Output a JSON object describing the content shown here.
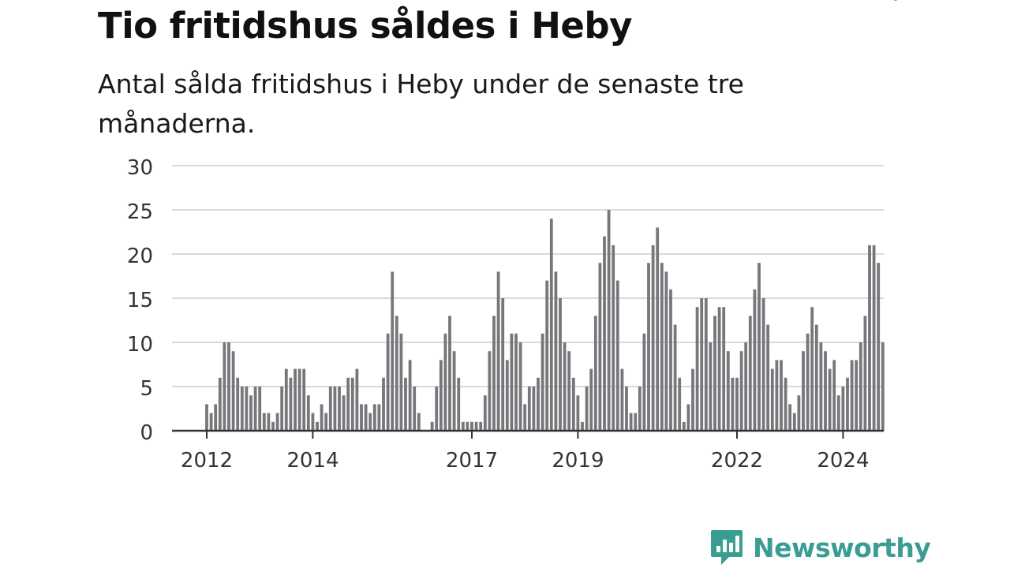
{
  "header": {
    "title": "Tio fritidshus såldes i Heby",
    "subtitle": "Antal sålda fritidshus i Heby under de senaste tre månaderna."
  },
  "brand": {
    "name": "Newsworthy",
    "icon": "newsworthy-logo-icon",
    "color": "#3a9d93"
  },
  "colors": {
    "bar": "#77767b",
    "highlight": "#1aa39a",
    "grid": "#d9d9d9",
    "axis": "#333333"
  },
  "chart_data": {
    "type": "bar",
    "title": "Tio fritidshus såldes i Heby",
    "subtitle": "Antal sålda fritidshus i Heby under de senaste tre månaderna.",
    "xlabel": "",
    "ylabel": "",
    "ylim": [
      0,
      30
    ],
    "yticks": [
      "0",
      "5",
      "10",
      "15",
      "20",
      "25",
      "30"
    ],
    "xticks": [
      {
        "label": "2012",
        "index": 0
      },
      {
        "label": "2014",
        "index": 24
      },
      {
        "label": "2017",
        "index": 60
      },
      {
        "label": "2019",
        "index": 84
      },
      {
        "label": "2022",
        "index": 120
      },
      {
        "label": "2024",
        "index": 144
      }
    ],
    "grid": true,
    "highlight": {
      "index": 154,
      "label": "10"
    },
    "values": [
      3,
      2,
      3,
      6,
      10,
      10,
      9,
      6,
      5,
      5,
      4,
      5,
      5,
      2,
      2,
      1,
      2,
      5,
      7,
      6,
      7,
      7,
      7,
      4,
      2,
      1,
      3,
      2,
      5,
      5,
      5,
      4,
      6,
      6,
      7,
      3,
      3,
      2,
      3,
      3,
      6,
      11,
      18,
      13,
      11,
      6,
      8,
      5,
      2,
      0,
      0,
      1,
      5,
      8,
      11,
      13,
      9,
      6,
      1,
      1,
      1,
      1,
      1,
      4,
      9,
      13,
      18,
      15,
      8,
      11,
      11,
      10,
      3,
      5,
      5,
      6,
      11,
      17,
      24,
      18,
      15,
      10,
      9,
      6,
      4,
      1,
      5,
      7,
      13,
      19,
      22,
      25,
      21,
      17,
      7,
      5,
      2,
      2,
      5,
      11,
      19,
      21,
      23,
      19,
      18,
      16,
      12,
      6,
      1,
      3,
      7,
      14,
      15,
      15,
      10,
      13,
      14,
      14,
      9,
      6,
      6,
      9,
      10,
      13,
      16,
      19,
      15,
      12,
      7,
      8,
      8,
      6,
      3,
      2,
      4,
      9,
      11,
      14,
      12,
      10,
      9,
      7,
      8,
      4,
      5,
      6,
      8,
      8,
      10,
      13,
      21,
      21,
      19,
      10
    ]
  }
}
